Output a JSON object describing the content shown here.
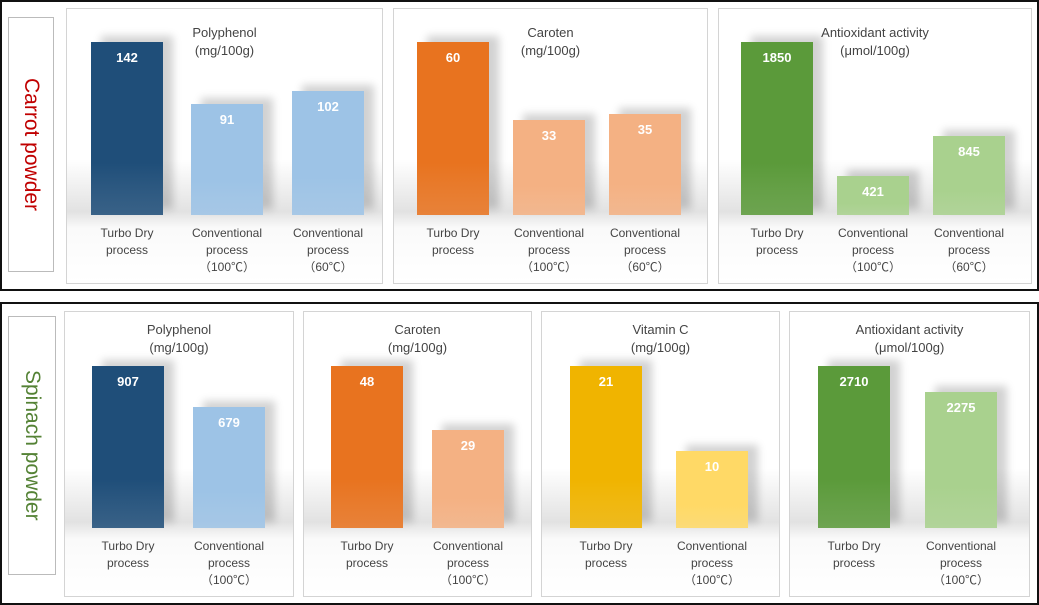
{
  "rows": [
    {
      "label": "Carrot powder",
      "label_color": "#c00000",
      "panels": [
        {
          "title": "Polyphenol",
          "unit": "(mg/100g)",
          "categories": [
            [
              "Turbo Dry",
              "process"
            ],
            [
              "Conventional",
              "process",
              "（100℃）"
            ],
            [
              "Conventional",
              "process",
              "（60℃）"
            ]
          ],
          "values": [
            142,
            91,
            102
          ],
          "colors": [
            "#1f4e79",
            "#9dc3e6",
            "#9dc3e6"
          ]
        },
        {
          "title": "Caroten",
          "unit": "(mg/100g)",
          "categories": [
            [
              "Turbo Dry",
              "process"
            ],
            [
              "Conventional",
              "process",
              "（100℃）"
            ],
            [
              "Conventional",
              "process",
              "（60℃）"
            ]
          ],
          "values": [
            60,
            33,
            35
          ],
          "colors": [
            "#e8731f",
            "#f4b183",
            "#f4b183"
          ]
        },
        {
          "title": "Antioxidant activity",
          "unit": "(μmol/100g)",
          "categories": [
            [
              "Turbo Dry",
              "process"
            ],
            [
              "Conventional",
              "process",
              "（100℃）"
            ],
            [
              "Conventional",
              "process",
              "（60℃）"
            ]
          ],
          "values": [
            1850,
            421,
            845
          ],
          "colors": [
            "#5b9a3a",
            "#a9d18e",
            "#a9d18e"
          ]
        }
      ]
    },
    {
      "label": "Spinach powder",
      "label_color": "#548235",
      "panels": [
        {
          "title": "Polyphenol",
          "unit": "(mg/100g)",
          "categories": [
            [
              "Turbo Dry",
              "process"
            ],
            [
              "Conventional",
              "process",
              "（100℃）"
            ]
          ],
          "values": [
            907,
            679
          ],
          "colors": [
            "#1f4e79",
            "#9dc3e6"
          ]
        },
        {
          "title": "Caroten",
          "unit": "(mg/100g)",
          "categories": [
            [
              "Turbo Dry",
              "process"
            ],
            [
              "Conventional",
              "process",
              "（100℃）"
            ]
          ],
          "values": [
            48,
            29
          ],
          "colors": [
            "#e8731f",
            "#f4b183"
          ]
        },
        {
          "title": "Vitamin C",
          "unit": "(mg/100g)",
          "categories": [
            [
              "Turbo Dry",
              "process"
            ],
            [
              "Conventional",
              "process",
              "（100℃）"
            ]
          ],
          "values": [
            21,
            10
          ],
          "colors": [
            "#f0b400",
            "#ffd966"
          ]
        },
        {
          "title": "Antioxidant activity",
          "unit": "(μmol/100g)",
          "categories": [
            [
              "Turbo Dry",
              "process"
            ],
            [
              "Conventional",
              "process",
              "（100℃）"
            ]
          ],
          "values": [
            2710,
            2275
          ],
          "colors": [
            "#5b9a3a",
            "#a9d18e"
          ]
        }
      ]
    }
  ],
  "chart_data": {
    "type": "bar",
    "title": "",
    "xlabel": "",
    "ylabel": "",
    "charts": [
      {
        "group": "Carrot powder",
        "title": "Polyphenol (mg/100g)",
        "categories": [
          "Turbo Dry process",
          "Conventional process (100℃)",
          "Conventional process (60℃)"
        ],
        "values": [
          142,
          91,
          102
        ]
      },
      {
        "group": "Carrot powder",
        "title": "Caroten (mg/100g)",
        "categories": [
          "Turbo Dry process",
          "Conventional process (100℃)",
          "Conventional process (60℃)"
        ],
        "values": [
          60,
          33,
          35
        ]
      },
      {
        "group": "Carrot powder",
        "title": "Antioxidant activity (μmol/100g)",
        "categories": [
          "Turbo Dry process",
          "Conventional process (100℃)",
          "Conventional process (60℃)"
        ],
        "values": [
          1850,
          421,
          845
        ]
      },
      {
        "group": "Spinach powder",
        "title": "Polyphenol (mg/100g)",
        "categories": [
          "Turbo Dry process",
          "Conventional process (100℃)"
        ],
        "values": [
          907,
          679
        ]
      },
      {
        "group": "Spinach powder",
        "title": "Caroten (mg/100g)",
        "categories": [
          "Turbo Dry process",
          "Conventional process (100℃)"
        ],
        "values": [
          48,
          29
        ]
      },
      {
        "group": "Spinach powder",
        "title": "Vitamin C (mg/100g)",
        "categories": [
          "Turbo Dry process",
          "Conventional process (100℃)"
        ],
        "values": [
          21,
          10
        ]
      },
      {
        "group": "Spinach powder",
        "title": "Antioxidant activity (μmol/100g)",
        "categories": [
          "Turbo Dry process",
          "Conventional process (100℃)"
        ],
        "values": [
          2710,
          2275
        ]
      }
    ]
  }
}
